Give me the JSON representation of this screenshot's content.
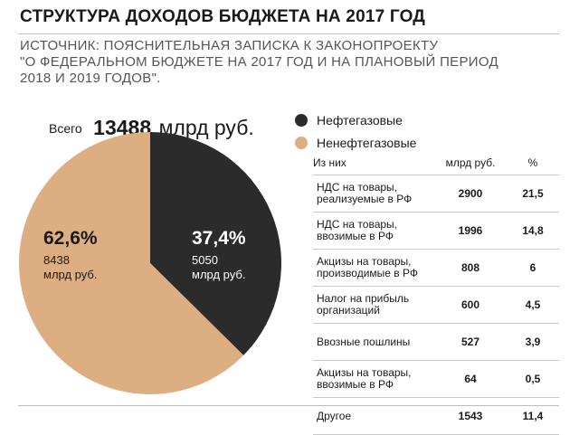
{
  "title": "СТРУКТУРА ДОХОДОВ БЮДЖЕТА НА 2017 ГОД",
  "source_lines": [
    "ИСТОЧНИК: ПОЯСНИТЕЛЬНАЯ ЗАПИСКА К ЗАКОНОПРОЕКТУ",
    "\"О ФЕДЕРАЛЬНОМ БЮДЖЕТЕ НА 2017 ГОД И НА ПЛАНОВЫЙ ПЕРИОД",
    "2018 И 2019 ГОДОВ\"."
  ],
  "total": {
    "label": "Всего",
    "value": "13488",
    "unit": "млрд руб."
  },
  "colors": {
    "oil_gas": "#2b2b2b",
    "non_oil_gas": "#deae83",
    "text": "#1a1a1a"
  },
  "chart_data": [
    {
      "type": "pie",
      "title": "",
      "slices": [
        {
          "name": "Нефтегазовые",
          "percent": 37.4,
          "percent_label": "37,4%",
          "value": 5050,
          "value_label": "5050",
          "unit_label": "млрд руб.",
          "color": "#2b2b2b"
        },
        {
          "name": "Ненефтегазовые",
          "percent": 62.6,
          "percent_label": "62,6%",
          "value": 8438,
          "value_label": "8438",
          "unit_label": "млрд руб.",
          "color": "#deae83"
        }
      ],
      "legend_placement": "top-right"
    },
    {
      "type": "table",
      "columns": [
        "Из них",
        "млрд руб.",
        "%"
      ],
      "rows": [
        {
          "name_lines": [
            "НДС на товары,",
            "реализуемые в РФ"
          ],
          "value": "2900",
          "percent": "21,5"
        },
        {
          "name_lines": [
            "НДС на товары,",
            "ввозимые в РФ"
          ],
          "value": "1996",
          "percent": "14,8"
        },
        {
          "name_lines": [
            "Акцизы на товары,",
            "производимые в РФ"
          ],
          "value": "808",
          "percent": "6"
        },
        {
          "name_lines": [
            "Налог на прибыль",
            "организаций"
          ],
          "value": "600",
          "percent": "4,5"
        },
        {
          "name_lines": [
            "Ввозные пошлины"
          ],
          "value": "527",
          "percent": "3,9"
        },
        {
          "name_lines": [
            "Акцизы на товары,",
            "ввозимые в РФ"
          ],
          "value": "64",
          "percent": "0,5"
        },
        {
          "name_lines": [
            "Другое"
          ],
          "value": "1543",
          "percent": "11,4"
        }
      ]
    }
  ]
}
